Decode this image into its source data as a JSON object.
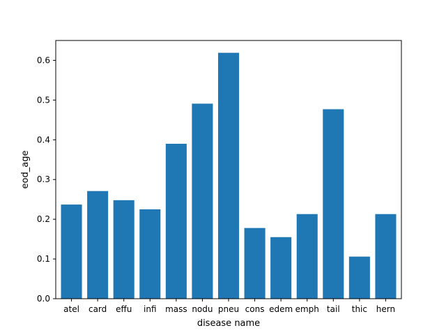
{
  "chart_data": {
    "type": "bar",
    "categories": [
      "atel",
      "card",
      "effu",
      "infi",
      "mass",
      "nodu",
      "pneu",
      "cons",
      "edem",
      "emph",
      "tail",
      "thic",
      "hern"
    ],
    "values": [
      0.237,
      0.271,
      0.248,
      0.225,
      0.39,
      0.491,
      0.619,
      0.178,
      0.155,
      0.213,
      0.477,
      0.106,
      0.213
    ],
    "xlabel": "disease name",
    "ylabel": "eod_age",
    "ylim": [
      0,
      0.65
    ],
    "yticks": [
      "0.0",
      "0.1",
      "0.2",
      "0.3",
      "0.4",
      "0.5",
      "0.6"
    ],
    "bar_color": "#1f77b4",
    "grid": false
  }
}
